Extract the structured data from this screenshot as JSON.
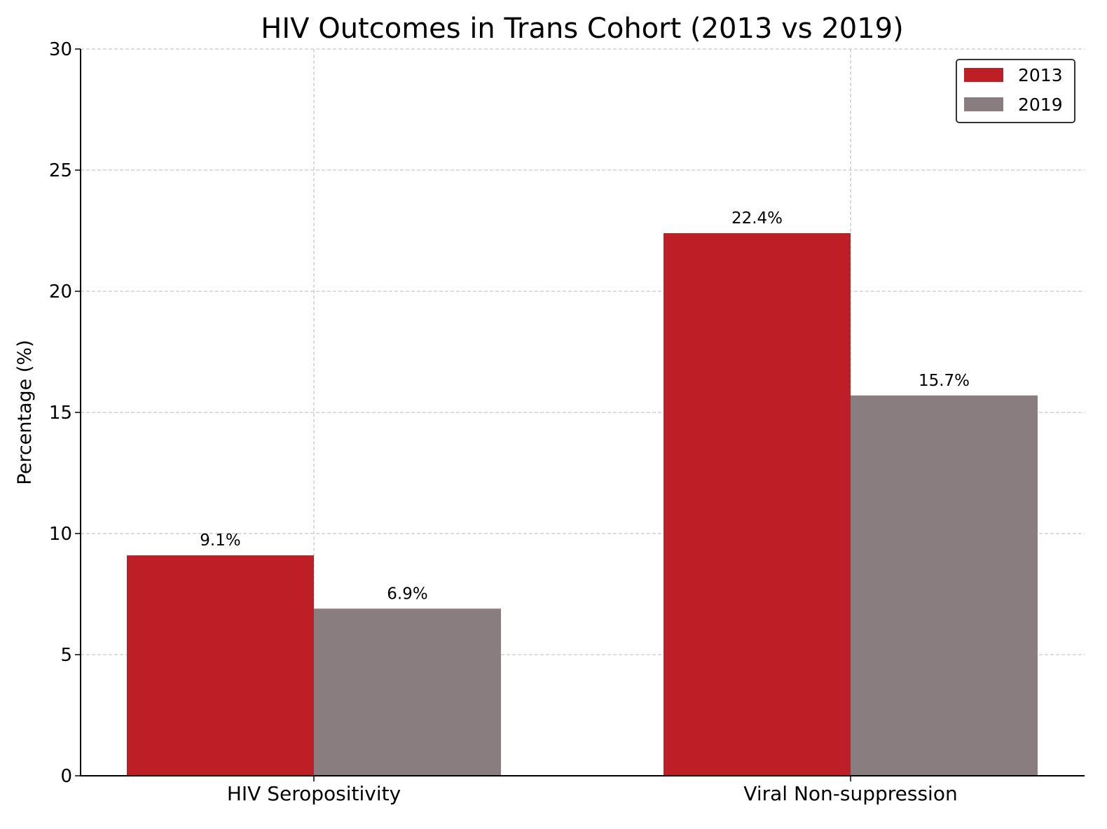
{
  "chart_data": {
    "type": "bar",
    "title": "HIV Outcomes in Trans Cohort (2013 vs 2019)",
    "xlabel": "",
    "ylabel": "Percentage (%)",
    "categories": [
      "HIV Seropositivity",
      "Viral Non-suppression"
    ],
    "series": [
      {
        "name": "2013",
        "values": [
          9.1,
          22.4
        ],
        "labels": [
          "9.1%",
          "22.4%"
        ],
        "color": "#be1e26"
      },
      {
        "name": "2019",
        "values": [
          6.9,
          15.7
        ],
        "labels": [
          "6.9%",
          "15.7%"
        ],
        "color": "#897d80"
      }
    ],
    "ylim": [
      0,
      30
    ],
    "yticks": [
      "0",
      "5",
      "10",
      "15",
      "20",
      "25",
      "30"
    ],
    "grid": true,
    "legend": "top-right"
  }
}
